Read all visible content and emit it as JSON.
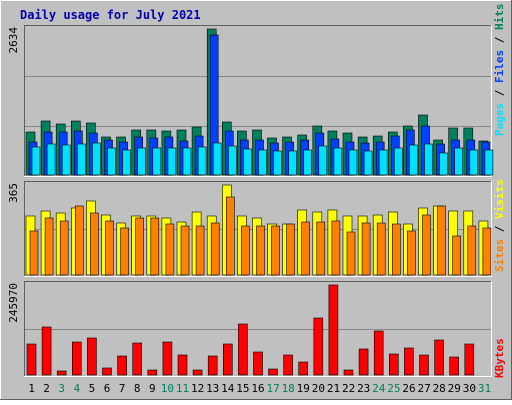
{
  "title": "Daily usage for July 2021",
  "colors": {
    "title": "#0000b0",
    "hits": "#00805c",
    "files": "#0040ff",
    "pages": "#00e0ff",
    "visits": "#ffff00",
    "sites": "#ff8000",
    "kbytes": "#ff0000",
    "weekend_label": "#00805c",
    "plot_bg": "#c0c0c0",
    "gridline": "#888888"
  },
  "legend": {
    "pages": "Pages",
    "files": "Files",
    "hits": "Hits",
    "sep1": " / ",
    "sep2": " / ",
    "visits": "Visits",
    "sites": "Sites",
    "sep3": " / ",
    "kbytes": "KBytes"
  },
  "chart_data": [
    {
      "type": "bar",
      "panel": "hits-files-pages",
      "y_max_label": "2634",
      "ylim": [
        0,
        2634
      ],
      "categories": [
        "1",
        "2",
        "3",
        "4",
        "5",
        "6",
        "7",
        "8",
        "9",
        "10",
        "11",
        "12",
        "13",
        "14",
        "15",
        "16",
        "17",
        "18",
        "19",
        "20",
        "21",
        "22",
        "23",
        "24",
        "25",
        "26",
        "27",
        "28",
        "29",
        "30",
        "31"
      ],
      "weekend_days": [
        "3",
        "4",
        "10",
        "11",
        "17",
        "18",
        "24",
        "25",
        "31"
      ],
      "grid": true,
      "legend_position": "right",
      "series": [
        {
          "name": "Hits",
          "values": [
            780,
            970,
            920,
            970,
            930,
            680,
            690,
            810,
            810,
            800,
            810,
            870,
            2634,
            950,
            800,
            820,
            660,
            690,
            720,
            880,
            790,
            760,
            680,
            710,
            770,
            890,
            1090,
            640,
            840,
            840,
            620
          ]
        },
        {
          "name": "Files",
          "values": [
            600,
            780,
            770,
            800,
            760,
            640,
            590,
            690,
            670,
            690,
            610,
            710,
            2520,
            800,
            640,
            630,
            570,
            590,
            630,
            760,
            650,
            600,
            580,
            600,
            710,
            810,
            880,
            560,
            640,
            640,
            590
          ]
        },
        {
          "name": "Pages",
          "values": [
            500,
            560,
            540,
            560,
            570,
            480,
            450,
            480,
            490,
            490,
            480,
            500,
            570,
            520,
            470,
            450,
            440,
            440,
            460,
            520,
            480,
            460,
            440,
            450,
            490,
            540,
            560,
            400,
            490,
            460,
            450
          ]
        }
      ]
    },
    {
      "type": "bar",
      "panel": "visits-sites",
      "y_max_label": "365",
      "ylim": [
        0,
        365
      ],
      "categories": [
        "1",
        "2",
        "3",
        "4",
        "5",
        "6",
        "7",
        "8",
        "9",
        "10",
        "11",
        "12",
        "13",
        "14",
        "15",
        "16",
        "17",
        "18",
        "19",
        "20",
        "21",
        "22",
        "23",
        "24",
        "25",
        "26",
        "27",
        "28",
        "29",
        "30",
        "31"
      ],
      "grid": true,
      "legend_position": "right",
      "series": [
        {
          "name": "Visits",
          "values": [
            240,
            260,
            250,
            270,
            300,
            245,
            210,
            240,
            240,
            230,
            215,
            255,
            240,
            365,
            240,
            230,
            205,
            205,
            265,
            255,
            265,
            240,
            240,
            245,
            255,
            205,
            270,
            280,
            260,
            260,
            220
          ]
        },
        {
          "name": "Sites",
          "values": [
            180,
            230,
            220,
            280,
            250,
            220,
            190,
            230,
            230,
            205,
            200,
            200,
            210,
            315,
            200,
            200,
            200,
            205,
            215,
            215,
            220,
            175,
            210,
            210,
            205,
            180,
            245,
            280,
            160,
            200,
            190
          ]
        }
      ]
    },
    {
      "type": "bar",
      "panel": "kbytes",
      "y_max_label": "245970",
      "ylim": [
        0,
        245970
      ],
      "categories": [
        "1",
        "2",
        "3",
        "4",
        "5",
        "6",
        "7",
        "8",
        "9",
        "10",
        "11",
        "12",
        "13",
        "14",
        "15",
        "16",
        "17",
        "18",
        "19",
        "20",
        "21",
        "22",
        "23",
        "24",
        "25",
        "26",
        "27",
        "28",
        "29",
        "30",
        "31"
      ],
      "grid": true,
      "legend_position": "right",
      "series": [
        {
          "name": "KBytes",
          "values": [
            85000,
            130000,
            12000,
            90000,
            100000,
            19000,
            53000,
            88000,
            14000,
            90000,
            55000,
            14000,
            52000,
            85000,
            140000,
            63000,
            16000,
            56000,
            35000,
            155000,
            245970,
            14000,
            70000,
            120000,
            58000,
            75000,
            55000,
            95000,
            48000,
            85000,
            0
          ]
        }
      ]
    }
  ]
}
